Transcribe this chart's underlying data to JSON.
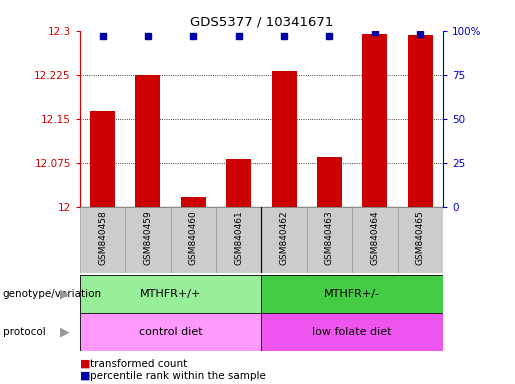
{
  "title": "GDS5377 / 10341671",
  "samples": [
    "GSM840458",
    "GSM840459",
    "GSM840460",
    "GSM840461",
    "GSM840462",
    "GSM840463",
    "GSM840464",
    "GSM840465"
  ],
  "red_values": [
    12.163,
    12.225,
    12.018,
    12.082,
    12.232,
    12.085,
    12.295,
    12.292
  ],
  "blue_values": [
    97,
    97,
    97,
    97,
    97,
    97,
    99,
    98
  ],
  "ylim_left": [
    12.0,
    12.3
  ],
  "ylim_right": [
    0,
    100
  ],
  "yticks_left": [
    12.0,
    12.075,
    12.15,
    12.225,
    12.3
  ],
  "yticks_right": [
    0,
    25,
    50,
    75,
    100
  ],
  "ytick_labels_left": [
    "12",
    "12.075",
    "12.15",
    "12.225",
    "12.3"
  ],
  "ytick_labels_right": [
    "0",
    "25",
    "50",
    "75",
    "100%"
  ],
  "grid_values": [
    12.075,
    12.15,
    12.225
  ],
  "genotype_groups": [
    {
      "label": "MTHFR+/+",
      "start": 0,
      "end": 4,
      "color": "#99EE99"
    },
    {
      "label": "MTHFR+/-",
      "start": 4,
      "end": 8,
      "color": "#44CC44"
    }
  ],
  "protocol_groups": [
    {
      "label": "control diet",
      "start": 0,
      "end": 4,
      "color": "#FF99FF"
    },
    {
      "label": "low folate diet",
      "start": 4,
      "end": 8,
      "color": "#EE55EE"
    }
  ],
  "bar_color": "#CC0000",
  "dot_color": "#0000AA",
  "left_axis_color": "#CC0000",
  "right_axis_color": "#0000CC",
  "legend_red_label": "transformed count",
  "legend_blue_label": "percentile rank within the sample",
  "genotype_label": "genotype/variation",
  "protocol_label": "protocol",
  "xtick_bg_color": "#CCCCCC",
  "xtick_border_color": "#999999"
}
